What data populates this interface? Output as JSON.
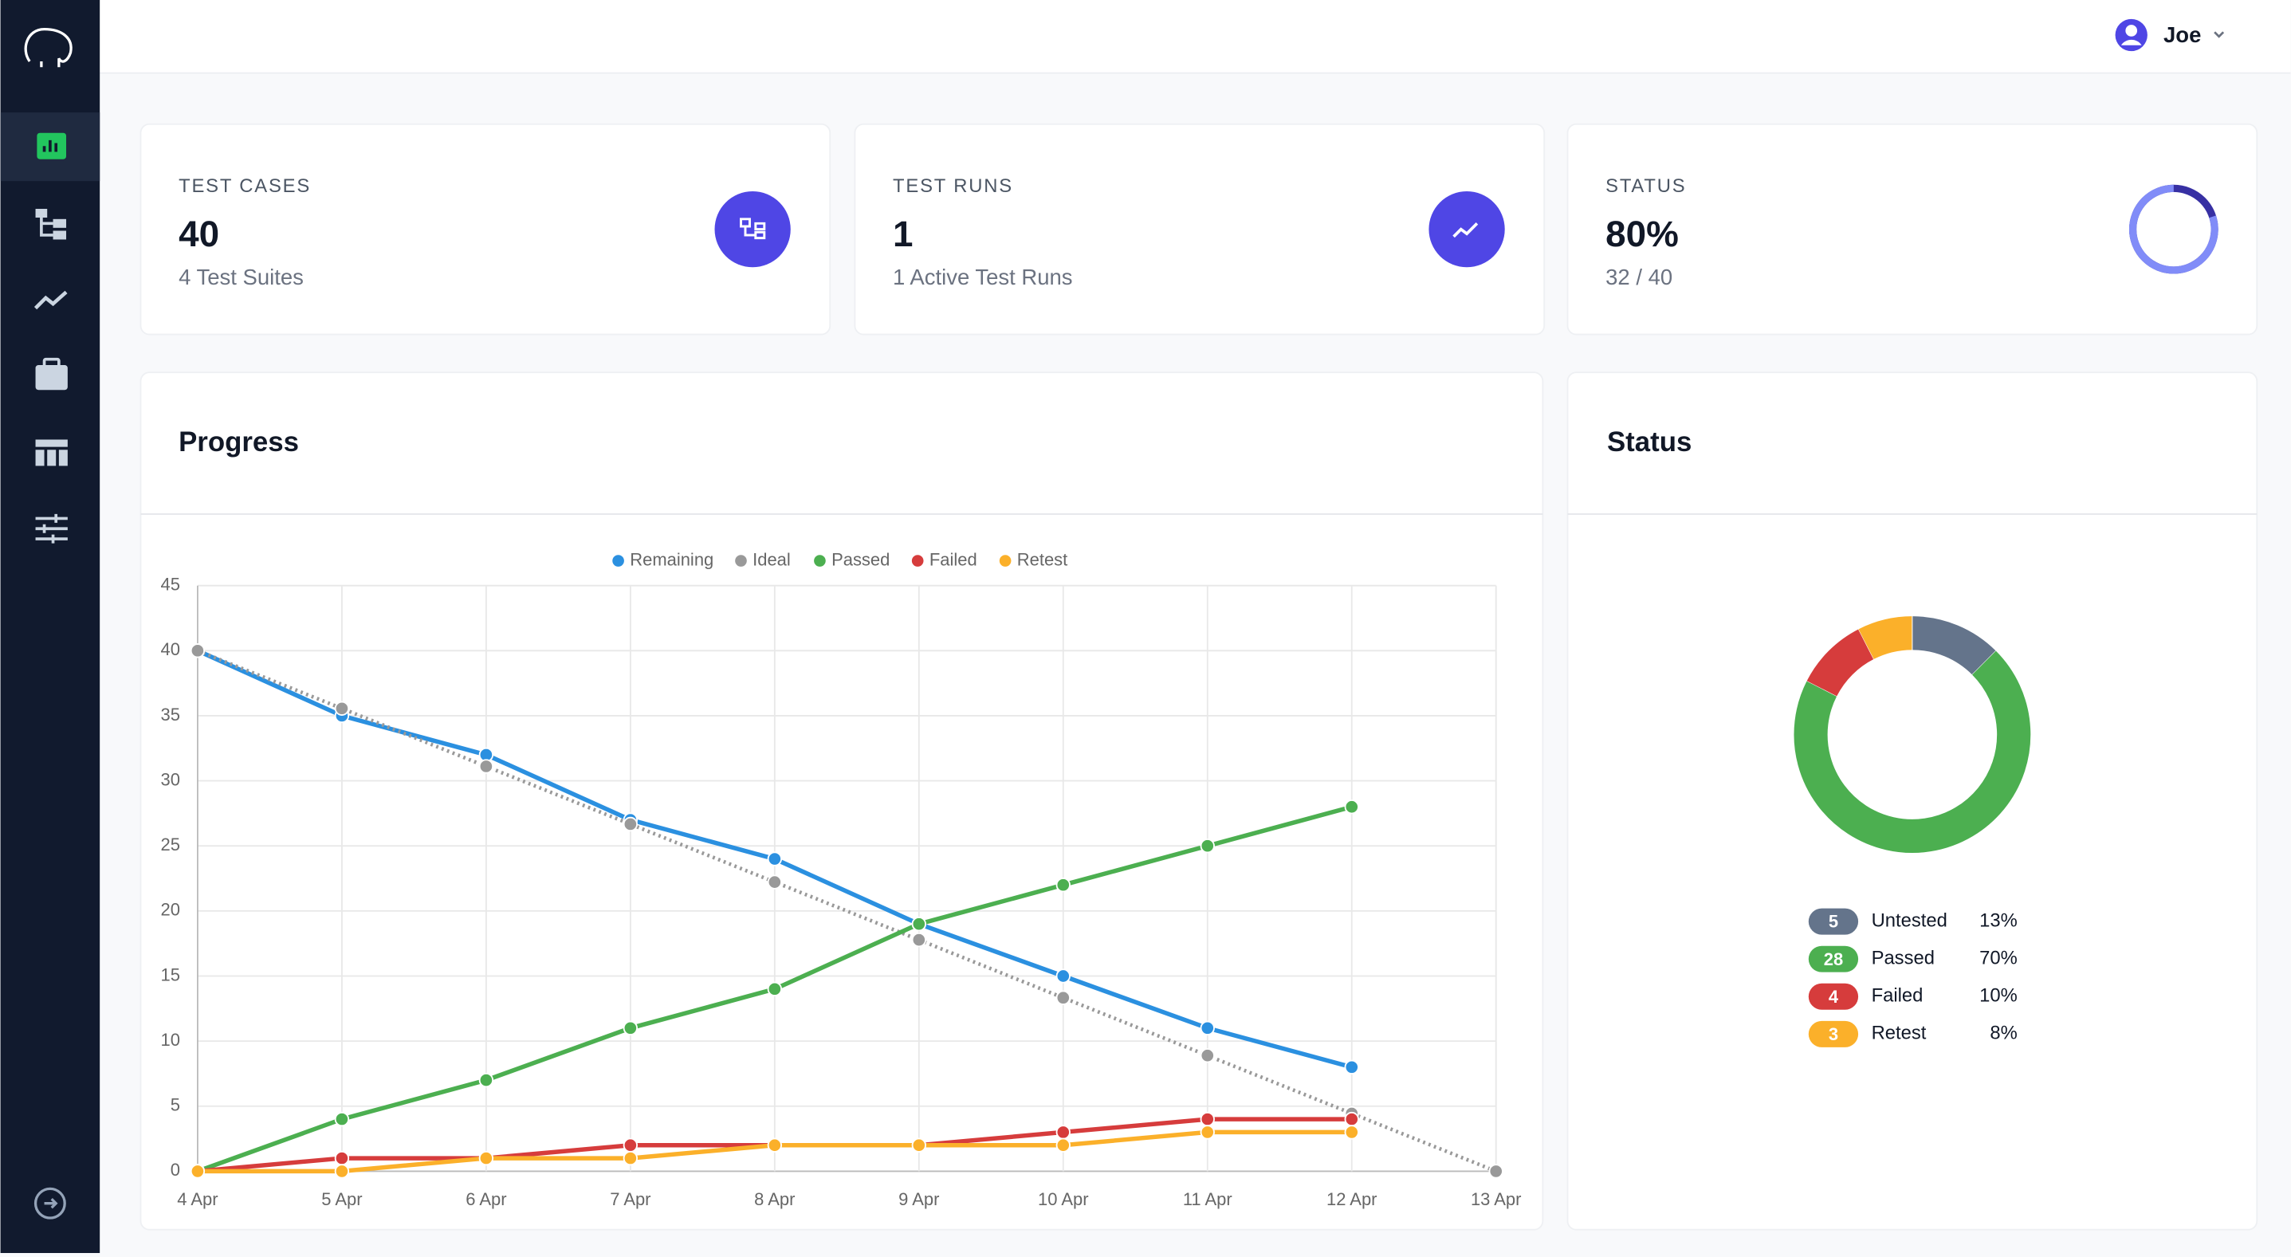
{
  "user": "Joe",
  "cards": [
    {
      "label": "TEST CASES",
      "value": "40",
      "sub": "4 Test Suites"
    },
    {
      "label": "TEST RUNS",
      "value": "1",
      "sub": "1 Active Test Runs"
    },
    {
      "label": "STATUS",
      "value": "80%",
      "sub": "32 / 40"
    }
  ],
  "chart_data": [
    {
      "type": "progress-ring",
      "value": 80,
      "ylim": [
        0,
        100
      ],
      "color": "#818cf8",
      "track_color": "#3730a3"
    },
    {
      "type": "line",
      "title": "Progress",
      "categories": [
        "4 Apr",
        "5 Apr",
        "6 Apr",
        "7 Apr",
        "8 Apr",
        "9 Apr",
        "10 Apr",
        "11 Apr",
        "12 Apr",
        "13 Apr"
      ],
      "series": [
        {
          "name": "Remaining",
          "color": "#2b90e0",
          "values": [
            40,
            35,
            32,
            27,
            24,
            19,
            15,
            11,
            8,
            null
          ]
        },
        {
          "name": "Ideal",
          "color": "#999999",
          "style": "dotted",
          "values": [
            40,
            35.56,
            31.11,
            26.67,
            22.22,
            17.78,
            13.33,
            8.89,
            4.44,
            0
          ]
        },
        {
          "name": "Passed",
          "color": "#4caf50",
          "values": [
            0,
            4,
            7,
            11,
            14,
            19,
            22,
            25,
            28,
            null
          ]
        },
        {
          "name": "Failed",
          "color": "#d63c3c",
          "values": [
            0,
            1,
            1,
            2,
            2,
            2,
            3,
            4,
            4,
            null
          ]
        },
        {
          "name": "Retest",
          "color": "#fbb02a",
          "values": [
            0,
            0,
            1,
            1,
            2,
            2,
            2,
            3,
            3,
            null
          ]
        }
      ],
      "ylim": [
        0,
        45
      ],
      "yticks": [
        0,
        5,
        10,
        15,
        20,
        25,
        30,
        35,
        40,
        45
      ],
      "grid": true,
      "legend": "top"
    },
    {
      "type": "donut",
      "title": "Status",
      "categories": [
        "Untested",
        "Passed",
        "Failed",
        "Retest"
      ],
      "values": [
        5,
        28,
        4,
        3
      ],
      "percent_labels": [
        "13%",
        "70%",
        "10%",
        "8%"
      ],
      "colors": [
        "#64748b",
        "#4caf50",
        "#d63c3c",
        "#fbb02a"
      ]
    }
  ]
}
